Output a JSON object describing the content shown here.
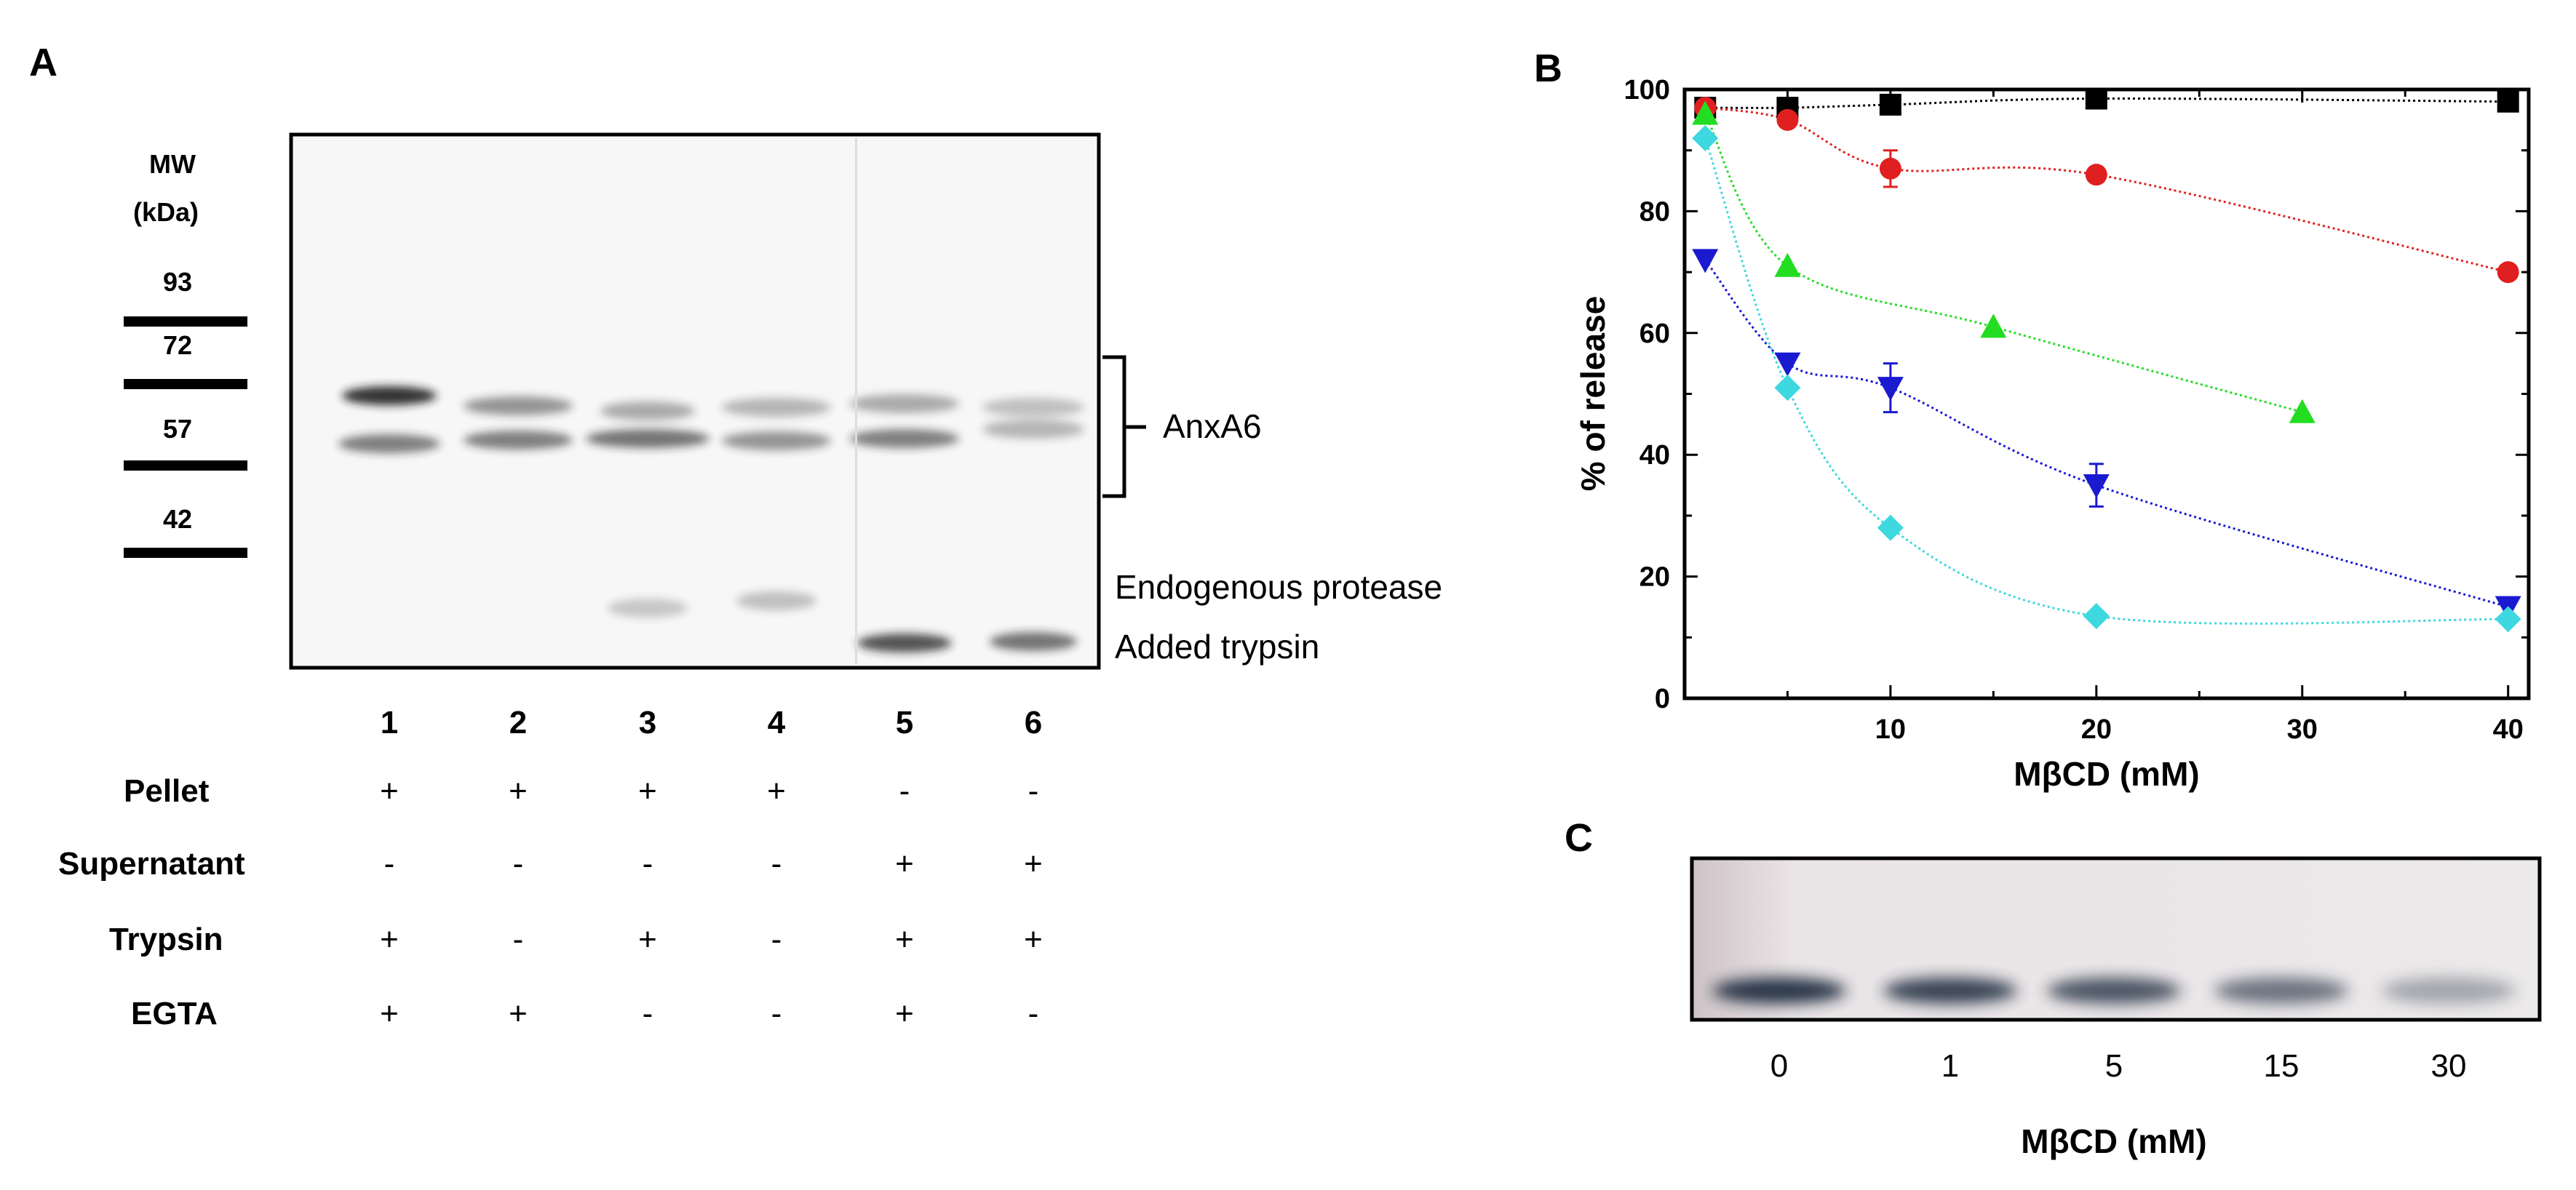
{
  "panel_labels": {
    "a": "A",
    "b": "B",
    "c": "C"
  },
  "panel_a": {
    "mw_header": [
      "MW",
      "(kDa)"
    ],
    "mw_markers": [
      "93",
      "72",
      "57",
      "42"
    ],
    "annotations": {
      "anxa6": "AnxA6",
      "endogenous": "Endogenous protease",
      "trypsin": "Added trypsin"
    },
    "lanes": [
      "1",
      "2",
      "3",
      "4",
      "5",
      "6"
    ],
    "conditions": [
      {
        "label": "Pellet",
        "signs": [
          "+",
          "+",
          "+",
          "+",
          "-",
          "-"
        ]
      },
      {
        "label": "Supernatant",
        "signs": [
          "-",
          "-",
          "-",
          "-",
          "+",
          "+"
        ]
      },
      {
        "label": "Trypsin",
        "signs": [
          "+",
          "-",
          "+",
          "-",
          "+",
          "+"
        ]
      },
      {
        "label": "EGTA",
        "signs": [
          "+",
          "+",
          "-",
          "-",
          "+",
          "-"
        ]
      }
    ]
  },
  "chart_data": {
    "type": "scatter",
    "title": "",
    "xlabel": "MβCD (mM)",
    "ylabel": "% of release",
    "xlim": [
      0,
      41
    ],
    "ylim": [
      0,
      100
    ],
    "xticks": [
      "10",
      "20",
      "30",
      "40"
    ],
    "yticks": [
      "0",
      "20",
      "40",
      "60",
      "80",
      "100"
    ],
    "series": [
      {
        "marker": "square",
        "color": "#000000",
        "x": [
          1,
          5,
          10,
          20,
          40
        ],
        "y": [
          97,
          97,
          97.5,
          98.5,
          98
        ]
      },
      {
        "marker": "circle",
        "color": "#e02020",
        "x": [
          1,
          5,
          10,
          20,
          40
        ],
        "y": [
          97,
          95,
          87,
          86,
          70
        ],
        "err": [
          0,
          0,
          3,
          0,
          0
        ]
      },
      {
        "marker": "triangle-up",
        "color": "#22dd22",
        "x": [
          1,
          5,
          15,
          30
        ],
        "y": [
          96,
          71,
          61,
          47
        ]
      },
      {
        "marker": "triangle-down",
        "color": "#1a1ad0",
        "x": [
          1,
          5,
          10,
          20,
          40
        ],
        "y": [
          72,
          55,
          51,
          35,
          15
        ],
        "err": [
          0,
          0,
          4,
          3.5,
          0
        ]
      },
      {
        "marker": "diamond",
        "color": "#3dd8e0",
        "x": [
          1,
          5,
          10,
          20,
          40
        ],
        "y": [
          92,
          51,
          28,
          13.5,
          13
        ]
      }
    ]
  },
  "panel_c": {
    "lanes": [
      "0",
      "1",
      "5",
      "15",
      "30"
    ],
    "xlabel": "MβCD (mM)"
  }
}
